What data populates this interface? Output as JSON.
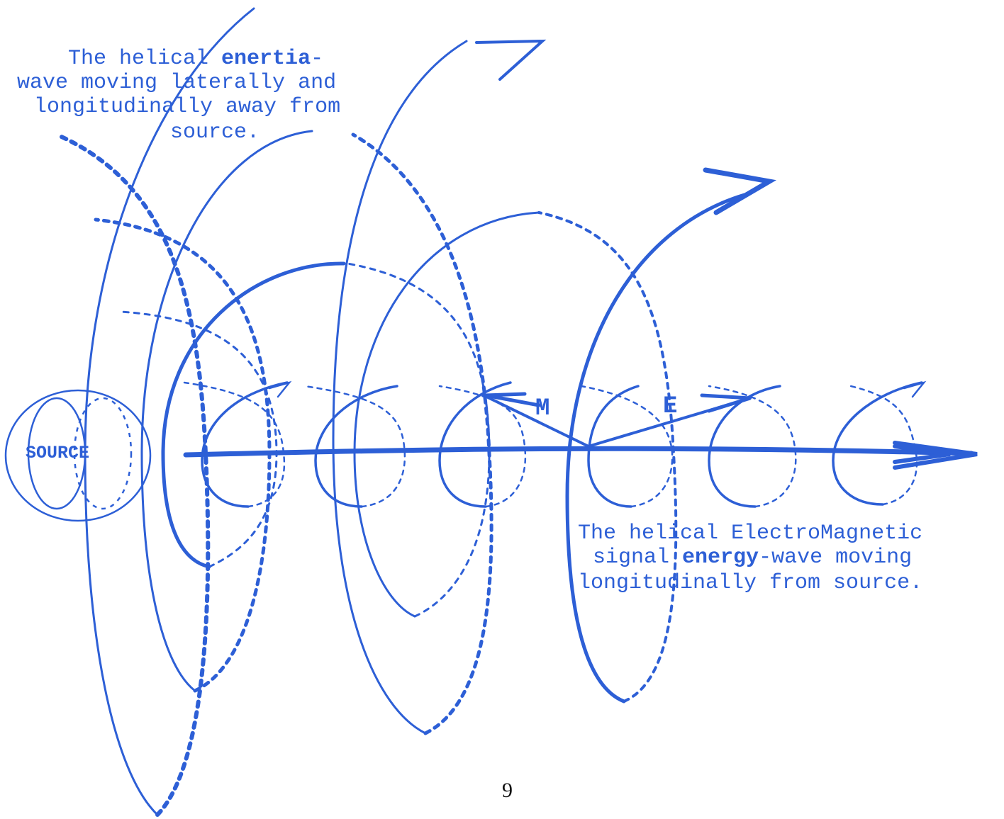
{
  "colors": {
    "ink_blue": "#2d5fd6",
    "page": "#ffffff",
    "page_number": "#111111"
  },
  "labels": {
    "source": "SOURCE",
    "m_vector": "M",
    "e_vector": "E",
    "page_number": "9"
  },
  "inertia_caption": {
    "line1_prefix": "The helical ",
    "line1_bold": "enertia",
    "line1_suffix": "-",
    "line2": "wave moving laterally and",
    "line3": "longitudinally away from",
    "line4": "source."
  },
  "em_caption": {
    "line1": "The helical ElectroMagnetic",
    "line2_prefix": "signal ",
    "line2_bold": "energy",
    "line2_suffix": "-wave moving",
    "line3": "longitudinally from source."
  }
}
